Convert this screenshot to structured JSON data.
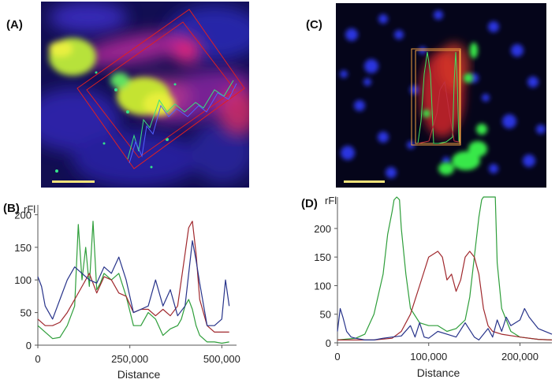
{
  "panels": {
    "a": {
      "label": "(A)"
    },
    "b": {
      "label": "(B)"
    },
    "c": {
      "label": "(C)"
    },
    "d": {
      "label": "(D)"
    }
  },
  "colors": {
    "green": "#2e9e3a",
    "red": "#a0282d",
    "blue": "#27338a",
    "scalebar": "#f2e27a"
  },
  "chart_data": [
    {
      "panel": "(B)",
      "type": "line",
      "title": "",
      "ylabel": "rFl",
      "xlabel": "Distance",
      "xlim": [
        0,
        540000
      ],
      "ylim": [
        0,
        215
      ],
      "xticks": [
        0,
        250000,
        500000
      ],
      "xtick_labels": [
        "0",
        "250,000",
        "500,000"
      ],
      "yticks": [
        0,
        50,
        100,
        150,
        200
      ],
      "ytick_labels": [
        "0",
        "50",
        "100",
        "150",
        "200"
      ],
      "series": [
        {
          "color": "green",
          "x": [
            0,
            20000,
            40000,
            60000,
            80000,
            100000,
            110000,
            120000,
            130000,
            140000,
            150000,
            160000,
            170000,
            180000,
            200000,
            220000,
            240000,
            260000,
            280000,
            300000,
            320000,
            340000,
            360000,
            380000,
            390000,
            400000,
            410000,
            420000,
            430000,
            440000,
            460000,
            480000,
            500000,
            520000
          ],
          "y": [
            30,
            20,
            10,
            12,
            30,
            60,
            185,
            100,
            150,
            90,
            190,
            85,
            95,
            110,
            100,
            110,
            75,
            30,
            30,
            50,
            40,
            15,
            25,
            30,
            40,
            60,
            70,
            55,
            30,
            15,
            5,
            5,
            3,
            5
          ]
        },
        {
          "color": "red",
          "x": [
            0,
            20000,
            40000,
            60000,
            80000,
            100000,
            120000,
            140000,
            160000,
            180000,
            200000,
            220000,
            240000,
            260000,
            280000,
            300000,
            320000,
            340000,
            360000,
            380000,
            400000,
            410000,
            420000,
            430000,
            440000,
            460000,
            480000,
            500000,
            520000
          ],
          "y": [
            40,
            30,
            30,
            35,
            50,
            70,
            90,
            110,
            80,
            105,
            100,
            80,
            75,
            50,
            55,
            55,
            45,
            55,
            45,
            60,
            140,
            180,
            190,
            140,
            70,
            30,
            20,
            20,
            20
          ]
        },
        {
          "color": "blue",
          "x": [
            0,
            10000,
            20000,
            40000,
            60000,
            80000,
            100000,
            120000,
            140000,
            160000,
            180000,
            200000,
            220000,
            240000,
            260000,
            280000,
            300000,
            320000,
            340000,
            360000,
            380000,
            400000,
            420000,
            430000,
            440000,
            460000,
            480000,
            500000,
            510000,
            520000
          ],
          "y": [
            105,
            90,
            60,
            40,
            70,
            100,
            120,
            110,
            100,
            95,
            120,
            110,
            135,
            100,
            50,
            55,
            60,
            100,
            60,
            85,
            45,
            60,
            160,
            130,
            95,
            30,
            30,
            40,
            100,
            60
          ]
        }
      ]
    },
    {
      "panel": "(D)",
      "type": "line",
      "title": "",
      "ylabel": "rFl",
      "xlabel": "Distance",
      "xlim": [
        0,
        235000
      ],
      "ylim": [
        0,
        255
      ],
      "xticks": [
        0,
        100000,
        200000
      ],
      "xtick_labels": [
        "0",
        "100,000",
        "200,000"
      ],
      "yticks": [
        0,
        50,
        100,
        150,
        200
      ],
      "ytick_labels": [
        "0",
        "50",
        "100",
        "150",
        "200"
      ],
      "series": [
        {
          "color": "green",
          "x": [
            0,
            20000,
            30000,
            40000,
            50000,
            55000,
            60000,
            62000,
            65000,
            68000,
            70000,
            75000,
            80000,
            90000,
            100000,
            110000,
            120000,
            130000,
            140000,
            145000,
            150000,
            155000,
            158000,
            160000,
            165000,
            170000,
            173000,
            175000,
            180000,
            190000,
            200000,
            210000,
            220000,
            235000
          ],
          "y": [
            5,
            8,
            15,
            50,
            120,
            190,
            230,
            250,
            255,
            250,
            200,
            120,
            60,
            35,
            30,
            30,
            20,
            25,
            40,
            80,
            150,
            220,
            250,
            255,
            255,
            255,
            255,
            140,
            60,
            20,
            10,
            8,
            6,
            5
          ]
        },
        {
          "color": "red",
          "x": [
            0,
            20000,
            40000,
            60000,
            70000,
            80000,
            90000,
            100000,
            110000,
            115000,
            120000,
            125000,
            130000,
            135000,
            140000,
            145000,
            150000,
            155000,
            160000,
            165000,
            170000,
            180000,
            200000,
            220000,
            235000
          ],
          "y": [
            5,
            5,
            5,
            8,
            20,
            50,
            100,
            150,
            160,
            150,
            110,
            120,
            90,
            110,
            150,
            160,
            150,
            120,
            60,
            30,
            20,
            15,
            10,
            6,
            5
          ]
        },
        {
          "color": "blue",
          "x": [
            0,
            3000,
            6000,
            10000,
            15000,
            20000,
            30000,
            40000,
            50000,
            60000,
            70000,
            80000,
            85000,
            90000,
            95000,
            100000,
            110000,
            120000,
            130000,
            140000,
            150000,
            155000,
            160000,
            165000,
            170000,
            175000,
            180000,
            185000,
            190000,
            200000,
            205000,
            210000,
            220000,
            235000
          ],
          "y": [
            20,
            60,
            45,
            20,
            10,
            8,
            5,
            5,
            8,
            10,
            12,
            30,
            10,
            35,
            10,
            8,
            20,
            15,
            10,
            35,
            10,
            5,
            15,
            25,
            10,
            40,
            20,
            45,
            30,
            40,
            60,
            45,
            25,
            15
          ]
        }
      ]
    }
  ]
}
